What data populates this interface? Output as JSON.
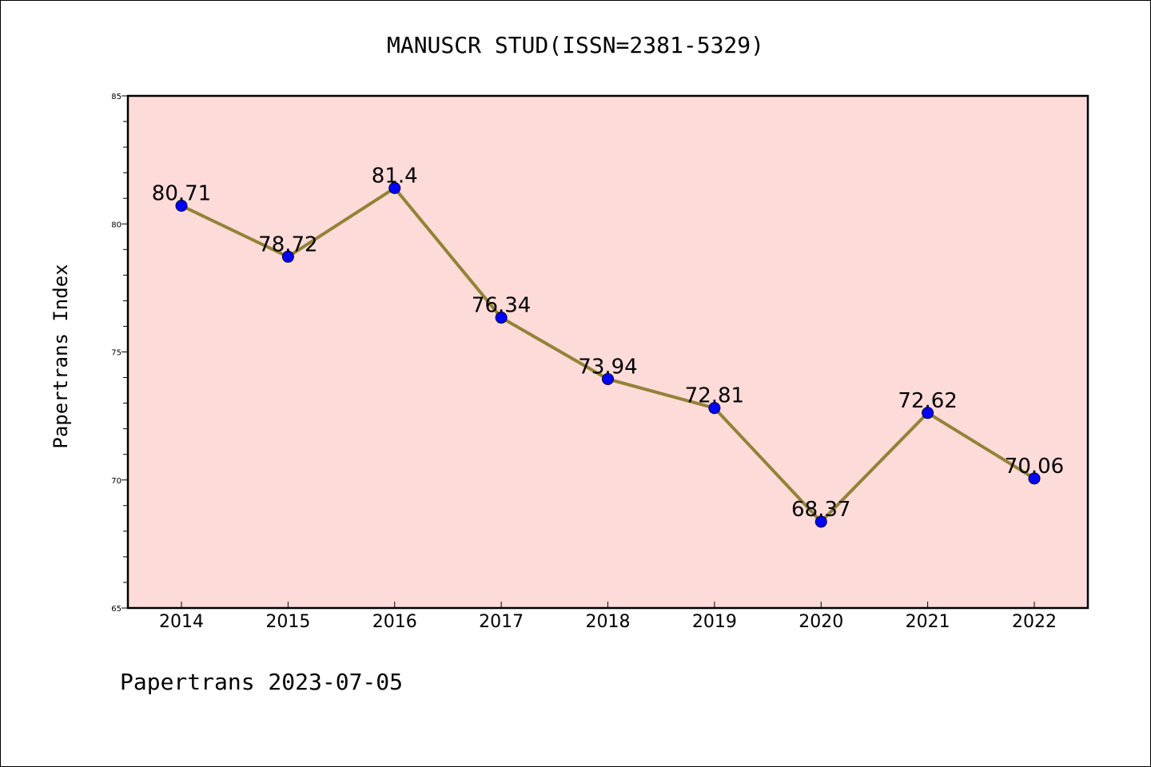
{
  "chart_data": {
    "type": "line",
    "title": "MANUSCR STUD(ISSN=2381-5329)",
    "xlabel": "",
    "ylabel": "Papertrans Index",
    "footer": "Papertrans 2023-07-05",
    "categories": [
      "2014",
      "2015",
      "2016",
      "2017",
      "2018",
      "2019",
      "2020",
      "2021",
      "2022"
    ],
    "series": [
      {
        "values": [
          80.71,
          78.72,
          81.4,
          76.34,
          73.94,
          72.81,
          68.37,
          72.62,
          70.06
        ],
        "labels": [
          "80.71",
          "78.72",
          "81.4",
          "76.34",
          "73.94",
          "72.81",
          "68.37",
          "72.62",
          "70.06"
        ],
        "line_color": "#948236",
        "marker_color": "#0000ff"
      }
    ],
    "ylim": [
      65,
      85
    ],
    "yticks": [
      "65",
      "70",
      "75",
      "80",
      "85"
    ],
    "plot_background": "#fddbd9",
    "grid": false,
    "legend": "none"
  }
}
